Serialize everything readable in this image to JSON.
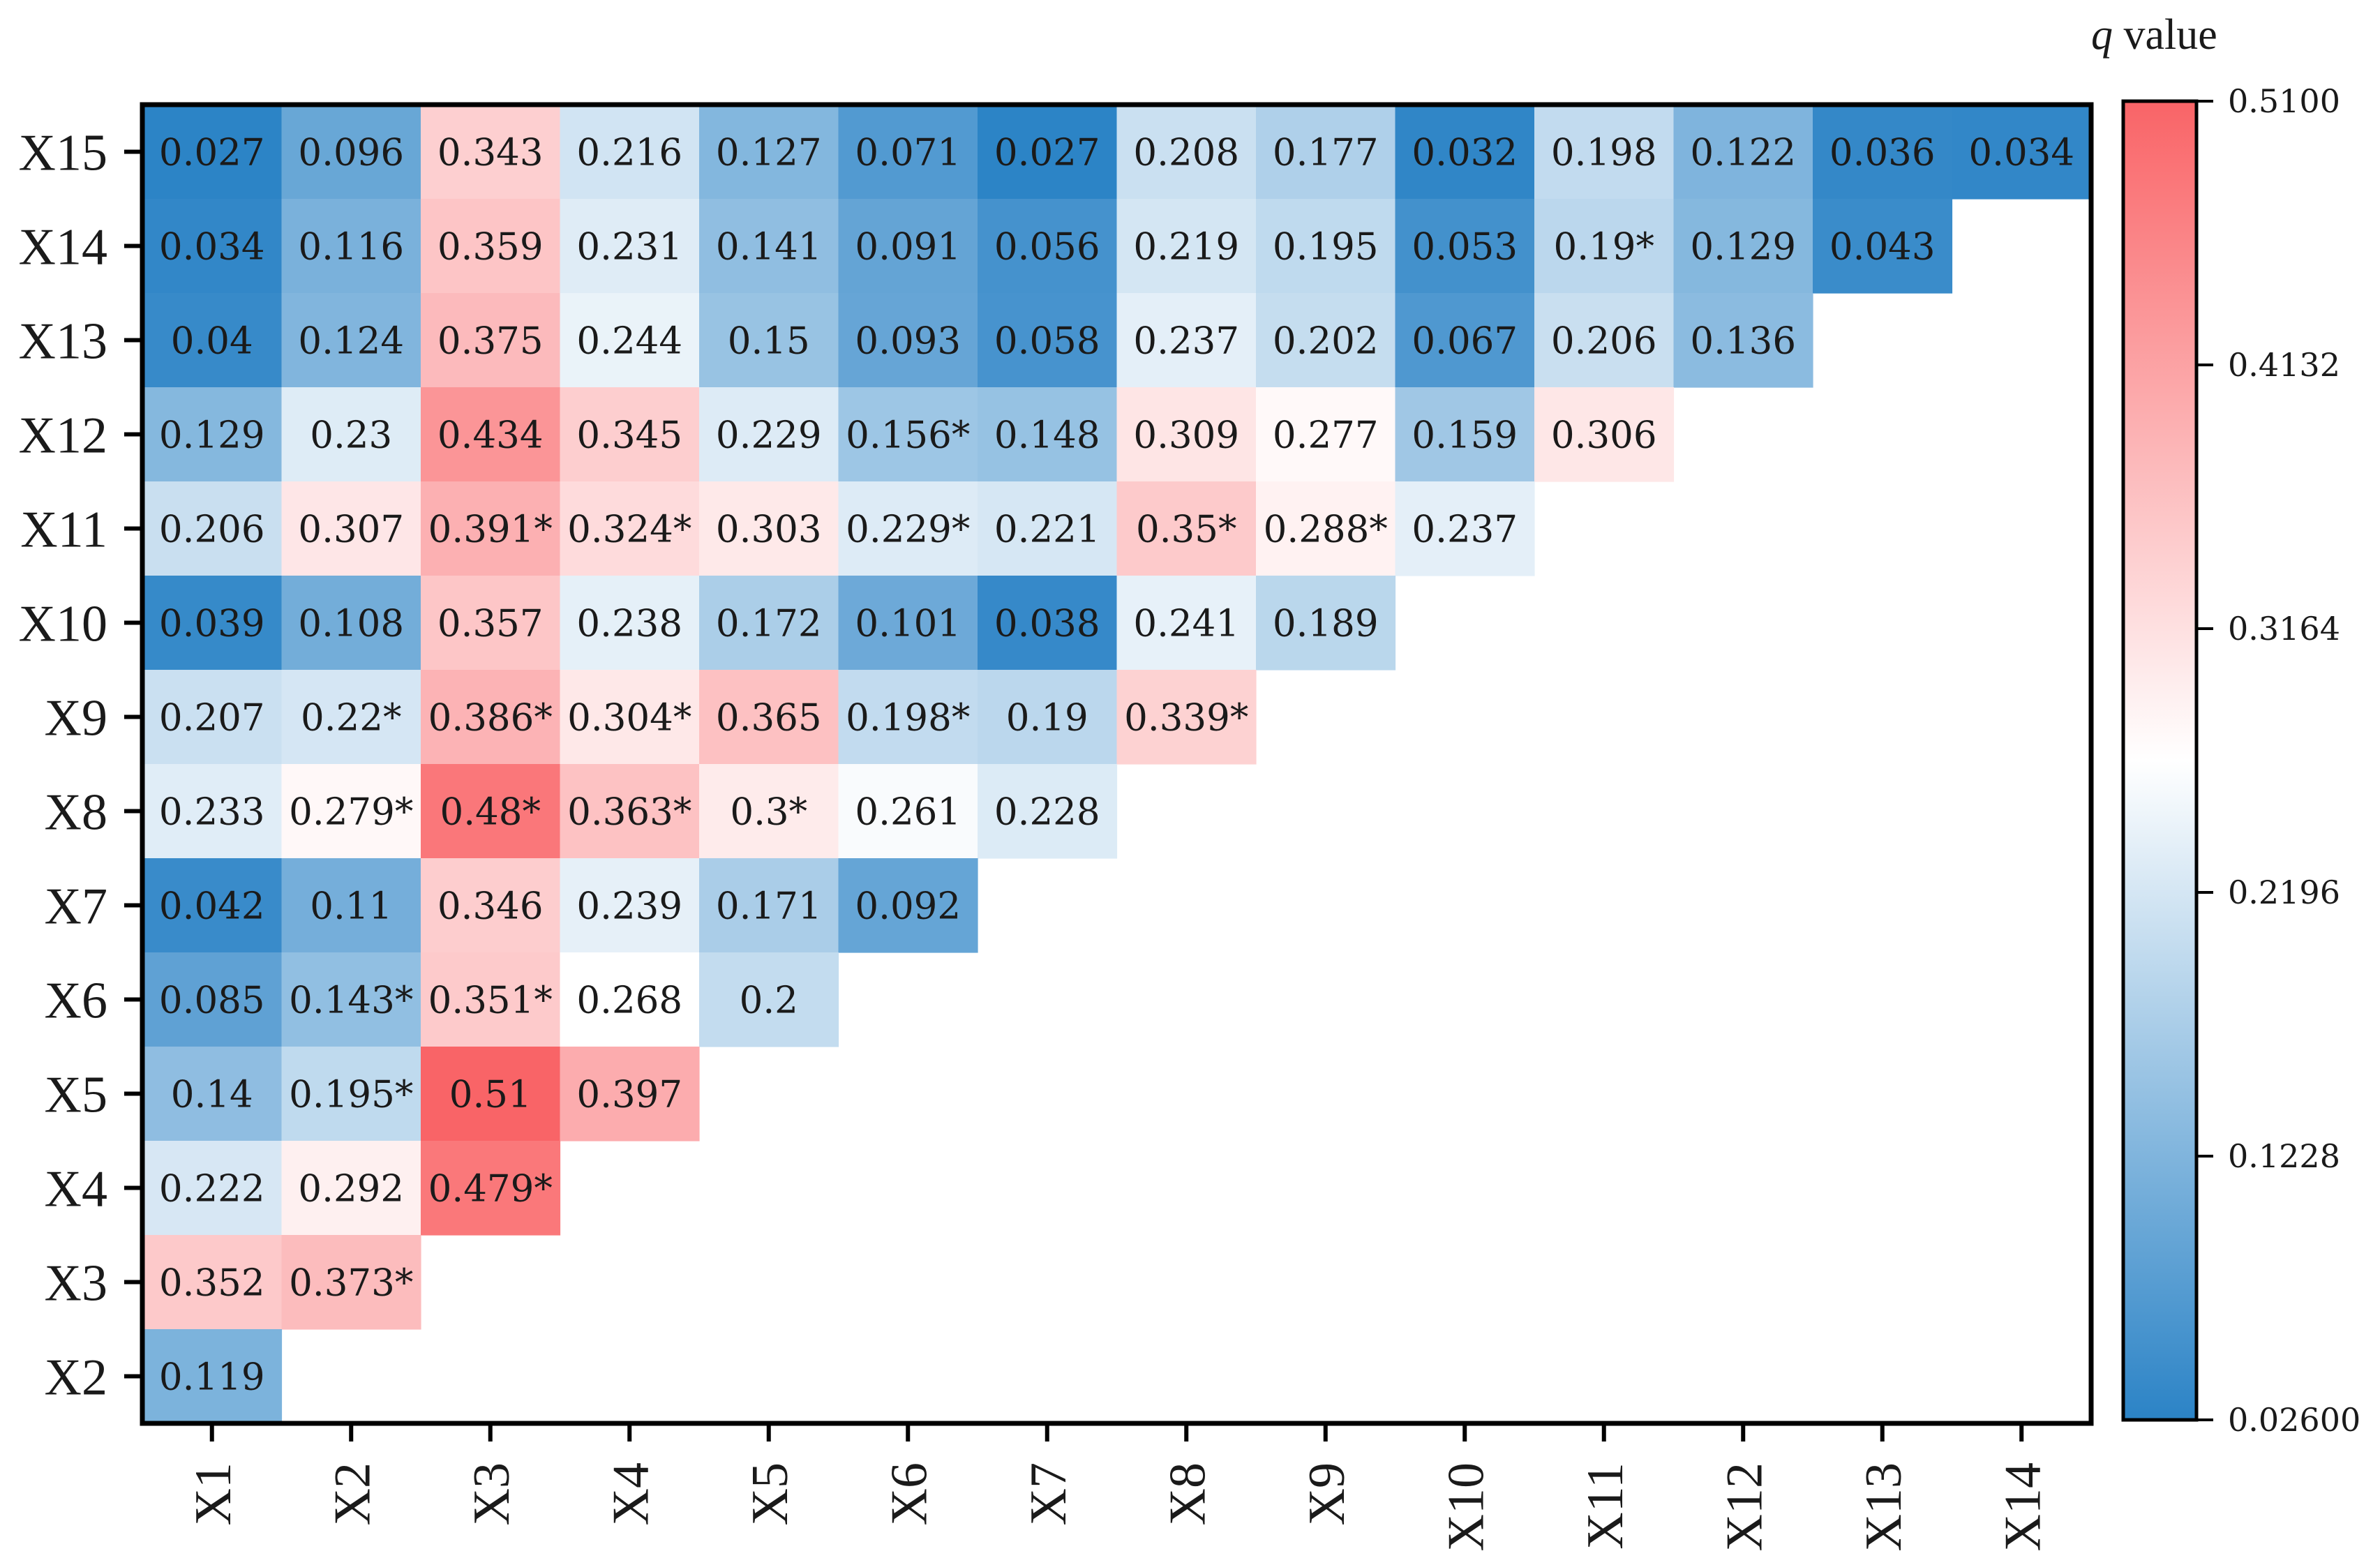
{
  "chart_data": {
    "type": "heatmap",
    "layout": "lower-triangular",
    "colorbar": {
      "title_italic": "q",
      "title_rest": " value",
      "ticks": [
        "0.5100",
        "0.4132",
        "0.3164",
        "0.2196",
        "0.1228",
        "0.02600"
      ],
      "min": 0.026,
      "max": 0.51,
      "low_color": "#2b83c6",
      "mid_color": "#ffffff",
      "high_color": "#f96467"
    },
    "x_labels": [
      "X1",
      "X2",
      "X3",
      "X4",
      "X5",
      "X6",
      "X7",
      "X8",
      "X9",
      "X10",
      "X11",
      "X12",
      "X13",
      "X14"
    ],
    "y_labels": [
      "X15",
      "X14",
      "X13",
      "X12",
      "X11",
      "X10",
      "X9",
      "X8",
      "X7",
      "X6",
      "X5",
      "X4",
      "X3",
      "X2"
    ],
    "rows": [
      {
        "values": [
          0.027,
          0.096,
          0.343,
          0.216,
          0.127,
          0.071,
          0.027,
          0.208,
          0.177,
          0.032,
          0.198,
          0.122,
          0.036,
          0.034
        ],
        "labels": [
          "0.027",
          "0.096",
          "0.343",
          "0.216",
          "0.127",
          "0.071",
          "0.027",
          "0.208",
          "0.177",
          "0.032",
          "0.198",
          "0.122",
          "0.036",
          "0.034"
        ]
      },
      {
        "values": [
          0.034,
          0.116,
          0.359,
          0.231,
          0.141,
          0.091,
          0.056,
          0.219,
          0.195,
          0.053,
          0.19,
          0.129,
          0.043
        ],
        "labels": [
          "0.034",
          "0.116",
          "0.359",
          "0.231",
          "0.141",
          "0.091",
          "0.056",
          "0.219",
          "0.195",
          "0.053",
          "0.19*",
          "0.129",
          "0.043"
        ]
      },
      {
        "values": [
          0.04,
          0.124,
          0.375,
          0.244,
          0.15,
          0.093,
          0.058,
          0.237,
          0.202,
          0.067,
          0.206,
          0.136
        ],
        "labels": [
          "0.04",
          "0.124",
          "0.375",
          "0.244",
          "0.15",
          "0.093",
          "0.058",
          "0.237",
          "0.202",
          "0.067",
          "0.206",
          "0.136"
        ]
      },
      {
        "values": [
          0.129,
          0.23,
          0.434,
          0.345,
          0.229,
          0.156,
          0.148,
          0.309,
          0.277,
          0.159,
          0.306
        ],
        "labels": [
          "0.129",
          "0.23",
          "0.434",
          "0.345",
          "0.229",
          "0.156*",
          "0.148",
          "0.309",
          "0.277",
          "0.159",
          "0.306"
        ]
      },
      {
        "values": [
          0.206,
          0.307,
          0.391,
          0.324,
          0.303,
          0.229,
          0.221,
          0.35,
          0.288,
          0.237
        ],
        "labels": [
          "0.206",
          "0.307",
          "0.391*",
          "0.324*",
          "0.303",
          "0.229*",
          "0.221",
          "0.35*",
          "0.288*",
          "0.237"
        ]
      },
      {
        "values": [
          0.039,
          0.108,
          0.357,
          0.238,
          0.172,
          0.101,
          0.038,
          0.241,
          0.189
        ],
        "labels": [
          "0.039",
          "0.108",
          "0.357",
          "0.238",
          "0.172",
          "0.101",
          "0.038",
          "0.241",
          "0.189"
        ]
      },
      {
        "values": [
          0.207,
          0.22,
          0.386,
          0.304,
          0.365,
          0.198,
          0.19,
          0.339
        ],
        "labels": [
          "0.207",
          "0.22*",
          "0.386*",
          "0.304*",
          "0.365",
          "0.198*",
          "0.19",
          "0.339*"
        ]
      },
      {
        "values": [
          0.233,
          0.279,
          0.48,
          0.363,
          0.3,
          0.261,
          0.228
        ],
        "labels": [
          "0.233",
          "0.279*",
          "0.48*",
          "0.363*",
          "0.3*",
          "0.261",
          "0.228"
        ]
      },
      {
        "values": [
          0.042,
          0.11,
          0.346,
          0.239,
          0.171,
          0.092
        ],
        "labels": [
          "0.042",
          "0.11",
          "0.346",
          "0.239",
          "0.171",
          "0.092"
        ]
      },
      {
        "values": [
          0.085,
          0.143,
          0.351,
          0.268,
          0.2
        ],
        "labels": [
          "0.085",
          "0.143*",
          "0.351*",
          "0.268",
          "0.2"
        ]
      },
      {
        "values": [
          0.14,
          0.195,
          0.51,
          0.397
        ],
        "labels": [
          "0.14",
          "0.195*",
          "0.51",
          "0.397"
        ]
      },
      {
        "values": [
          0.222,
          0.292,
          0.479
        ],
        "labels": [
          "0.222",
          "0.292",
          "0.479*"
        ]
      },
      {
        "values": [
          0.352,
          0.373
        ],
        "labels": [
          "0.352",
          "0.373*"
        ]
      },
      {
        "values": [
          0.119
        ],
        "labels": [
          "0.119"
        ]
      }
    ]
  }
}
